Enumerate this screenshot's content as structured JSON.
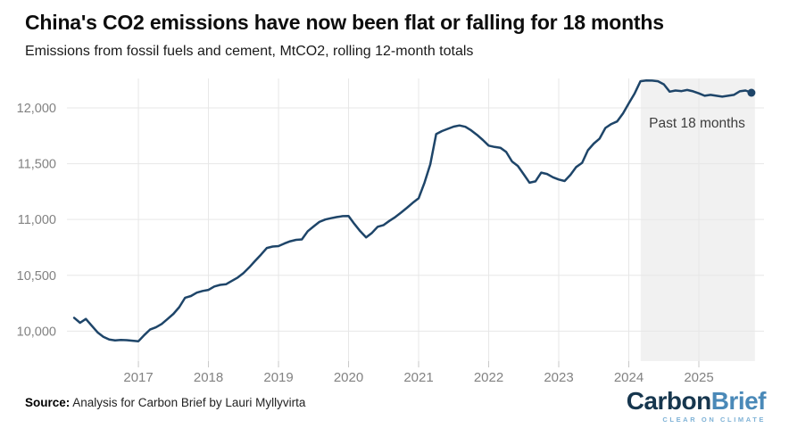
{
  "header": {
    "title": "China's CO2 emissions have now been flat or falling for 18 months",
    "subtitle": "Emissions from fossil fuels and cement, MtCO2, rolling 12-month totals"
  },
  "annotation": {
    "label": "Past 18 months"
  },
  "footer": {
    "source_label": "Source:",
    "source_text": " Analysis for Carbon Brief by Lauri Myllyvirta",
    "logo_part1": "Carbon",
    "logo_part2": "Brief",
    "logo_tagline": "CLEAR ON CLIMATE"
  },
  "colors": {
    "line": "#1e4569",
    "end_dot": "#1e4569",
    "band_fill": "#f1f1f1",
    "grid": "#e7e7e7",
    "tick": "#c8c8c8",
    "axis_text": "#828282",
    "logo_navy": "#16364e",
    "logo_blue": "#4a89b8",
    "logo_tagline_blue": "#7fb2d6"
  },
  "chart_data": {
    "type": "line",
    "title": "China's CO2 emissions have now been flat or falling for 18 months",
    "subtitle": "Emissions from fossil fuels and cement, MtCO2, rolling 12-month totals",
    "xlabel": "",
    "ylabel": "MtCO2, rolling 12-month total",
    "grid": true,
    "x_ticks": [
      2017,
      2018,
      2019,
      2020,
      2021,
      2022,
      2023,
      2024,
      2025
    ],
    "y_ticks": [
      {
        "value": 10000,
        "label": "10,000"
      },
      {
        "value": 10500,
        "label": "10,500"
      },
      {
        "value": 11000,
        "label": "11,000"
      },
      {
        "value": 11500,
        "label": "11,500"
      },
      {
        "value": 12000,
        "label": "12,000"
      }
    ],
    "x_domain": [
      2015.98,
      2025.93
    ],
    "y_domain": [
      9732,
      12263
    ],
    "band": {
      "x_start": 2024.17,
      "x_end": 2025.8,
      "label": "Past 18 months"
    },
    "series": [
      {
        "name": "China CO2 emissions (MtCO2, rolling 12-month total)",
        "start_year": 2016,
        "start_month": 2,
        "monthly_values": [
          10120,
          10075,
          10110,
          10050,
          9990,
          9950,
          9925,
          9918,
          9922,
          9920,
          9915,
          9910,
          9965,
          10015,
          10035,
          10065,
          10110,
          10155,
          10215,
          10300,
          10315,
          10345,
          10360,
          10370,
          10400,
          10415,
          10420,
          10450,
          10480,
          10520,
          10572,
          10630,
          10685,
          10745,
          10758,
          10762,
          10785,
          10805,
          10818,
          10822,
          10895,
          10938,
          10978,
          11000,
          11012,
          11022,
          11030,
          11032,
          10960,
          10895,
          10840,
          10880,
          10935,
          10950,
          10988,
          11022,
          11062,
          11105,
          11150,
          11190,
          11330,
          11495,
          11765,
          11792,
          11812,
          11832,
          11842,
          11830,
          11798,
          11758,
          11712,
          11662,
          11650,
          11643,
          11605,
          11520,
          11480,
          11405,
          11330,
          11342,
          11420,
          11408,
          11378,
          11358,
          11345,
          11400,
          11470,
          11508,
          11620,
          11680,
          11725,
          11820,
          11855,
          11878,
          11950,
          12040,
          12130,
          12238,
          12245,
          12244,
          12238,
          12210,
          12145,
          12155,
          12150,
          12160,
          12148,
          12130,
          12108,
          12116,
          12108,
          12100,
          12108,
          12116,
          12148,
          12155,
          12135
        ]
      }
    ],
    "end_point_marker": true
  }
}
